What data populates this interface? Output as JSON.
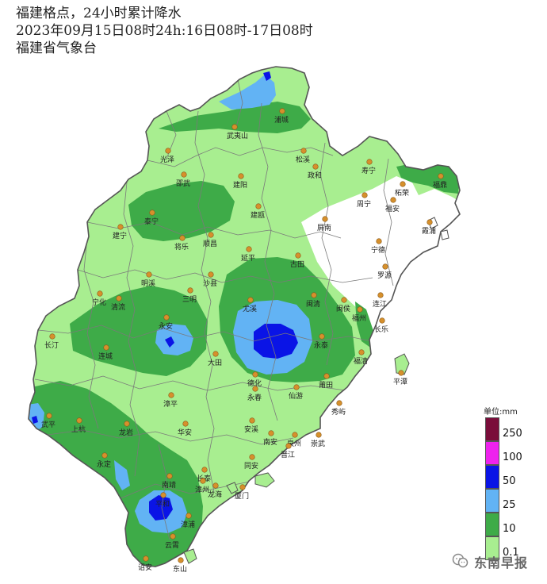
{
  "header": {
    "line1": "福建格点，24小时累计降水",
    "line2": "2023年09月15日08时24h:16日08时-17日08时",
    "line3": "福建省气象台"
  },
  "legend": {
    "title": "单位:mm",
    "levels": [
      {
        "value": "250",
        "color": "#7a0d3a"
      },
      {
        "value": "100",
        "color": "#ee22ee"
      },
      {
        "value": "50",
        "color": "#0a14e6"
      },
      {
        "value": "25",
        "color": "#62b3f4"
      },
      {
        "value": "10",
        "color": "#3eab48"
      },
      {
        "value": "0.1",
        "color": "#a8ee90"
      }
    ]
  },
  "colors": {
    "no_rain": "#ffffff",
    "light": "#a8ee90",
    "moderate": "#3eab48",
    "heavy": "#62b3f4",
    "storm": "#0a14e6",
    "border": "#555555",
    "city_dot": "#d6902c"
  },
  "cities": [
    {
      "name": "浦城"
    },
    {
      "name": "武夷山"
    },
    {
      "name": "松溪"
    },
    {
      "name": "光泽"
    },
    {
      "name": "政和"
    },
    {
      "name": "寿宁"
    },
    {
      "name": "邵武"
    },
    {
      "name": "建阳"
    },
    {
      "name": "柘荣"
    },
    {
      "name": "福鼎"
    },
    {
      "name": "周宁"
    },
    {
      "name": "福安"
    },
    {
      "name": "泰宁"
    },
    {
      "name": "建瓯"
    },
    {
      "name": "霞浦"
    },
    {
      "name": "建宁"
    },
    {
      "name": "将乐"
    },
    {
      "name": "顺昌"
    },
    {
      "name": "屏南"
    },
    {
      "name": "宁德"
    },
    {
      "name": "延平"
    },
    {
      "name": "古田"
    },
    {
      "name": "罗源"
    },
    {
      "name": "明溪"
    },
    {
      "name": "沙县"
    },
    {
      "name": "三明"
    },
    {
      "name": "宁化"
    },
    {
      "name": "清流"
    },
    {
      "name": "尤溪"
    },
    {
      "name": "闽清"
    },
    {
      "name": "闽侯"
    },
    {
      "name": "连江"
    },
    {
      "name": "福州"
    },
    {
      "name": "永安"
    },
    {
      "name": "长乐"
    },
    {
      "name": "长汀"
    },
    {
      "name": "永泰"
    },
    {
      "name": "连城"
    },
    {
      "name": "福清"
    },
    {
      "name": "大田"
    },
    {
      "name": "平潭"
    },
    {
      "name": "德化"
    },
    {
      "name": "永春"
    },
    {
      "name": "仙游"
    },
    {
      "name": "莆田"
    },
    {
      "name": "漳平"
    },
    {
      "name": "秀屿"
    },
    {
      "name": "武平"
    },
    {
      "name": "上杭"
    },
    {
      "name": "安溪"
    },
    {
      "name": "龙岩"
    },
    {
      "name": "华安"
    },
    {
      "name": "南安"
    },
    {
      "name": "泉州"
    },
    {
      "name": "崇武"
    },
    {
      "name": "晋江"
    },
    {
      "name": "永定"
    },
    {
      "name": "长泰"
    },
    {
      "name": "同安"
    },
    {
      "name": "南靖"
    },
    {
      "name": "漳州"
    },
    {
      "name": "龙海"
    },
    {
      "name": "厦门"
    },
    {
      "name": "平和"
    },
    {
      "name": "漳浦"
    },
    {
      "name": "云霄"
    },
    {
      "name": "诏安"
    },
    {
      "name": "东山"
    }
  ],
  "watermark": {
    "text": "东南早报"
  }
}
